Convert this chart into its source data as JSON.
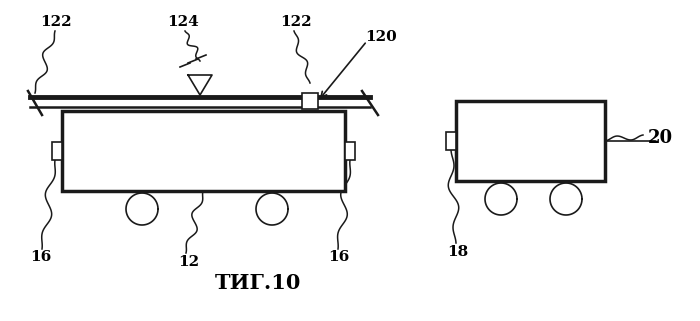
{
  "background_color": "#ffffff",
  "line_color": "#1a1a1a",
  "label_color": "#000000",
  "fig_width": 7.0,
  "fig_height": 3.21,
  "dpi": 100,
  "caption": "ΤИГ.10",
  "labels": {
    "122_left": "122",
    "124": "124",
    "122_mid": "122",
    "120": "120",
    "16_left": "16",
    "16_right": "16",
    "12": "12",
    "18": "18",
    "20": "20"
  }
}
